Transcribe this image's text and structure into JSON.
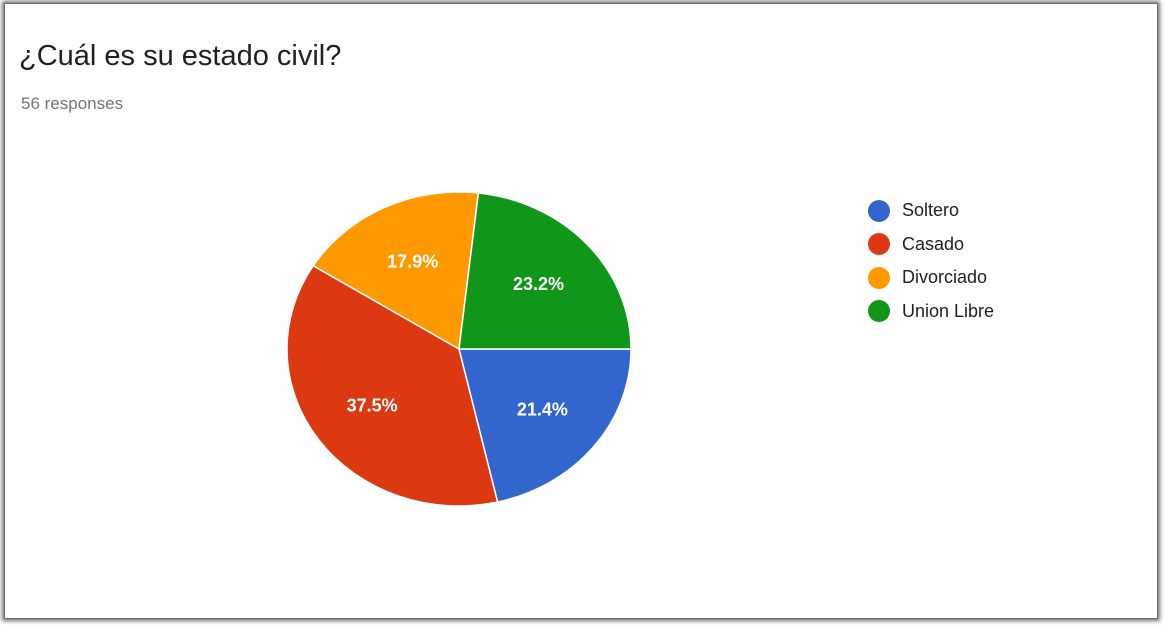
{
  "title": "¿Cuál es su estado civil?",
  "subtitle": "56 responses",
  "chart_data": {
    "type": "pie",
    "title": "¿Cuál es su estado civil?",
    "categories": [
      "Soltero",
      "Casado",
      "Divorciado",
      "Union Libre"
    ],
    "values": [
      21.4,
      37.5,
      17.9,
      23.2
    ],
    "labels": [
      "21.4%",
      "37.5%",
      "17.9%",
      "23.2%"
    ],
    "colors": [
      "#3366cc",
      "#dc3912",
      "#ff9900",
      "#109618"
    ],
    "start_angle_deg": 90,
    "direction": "clockwise",
    "legend_position": "right"
  }
}
